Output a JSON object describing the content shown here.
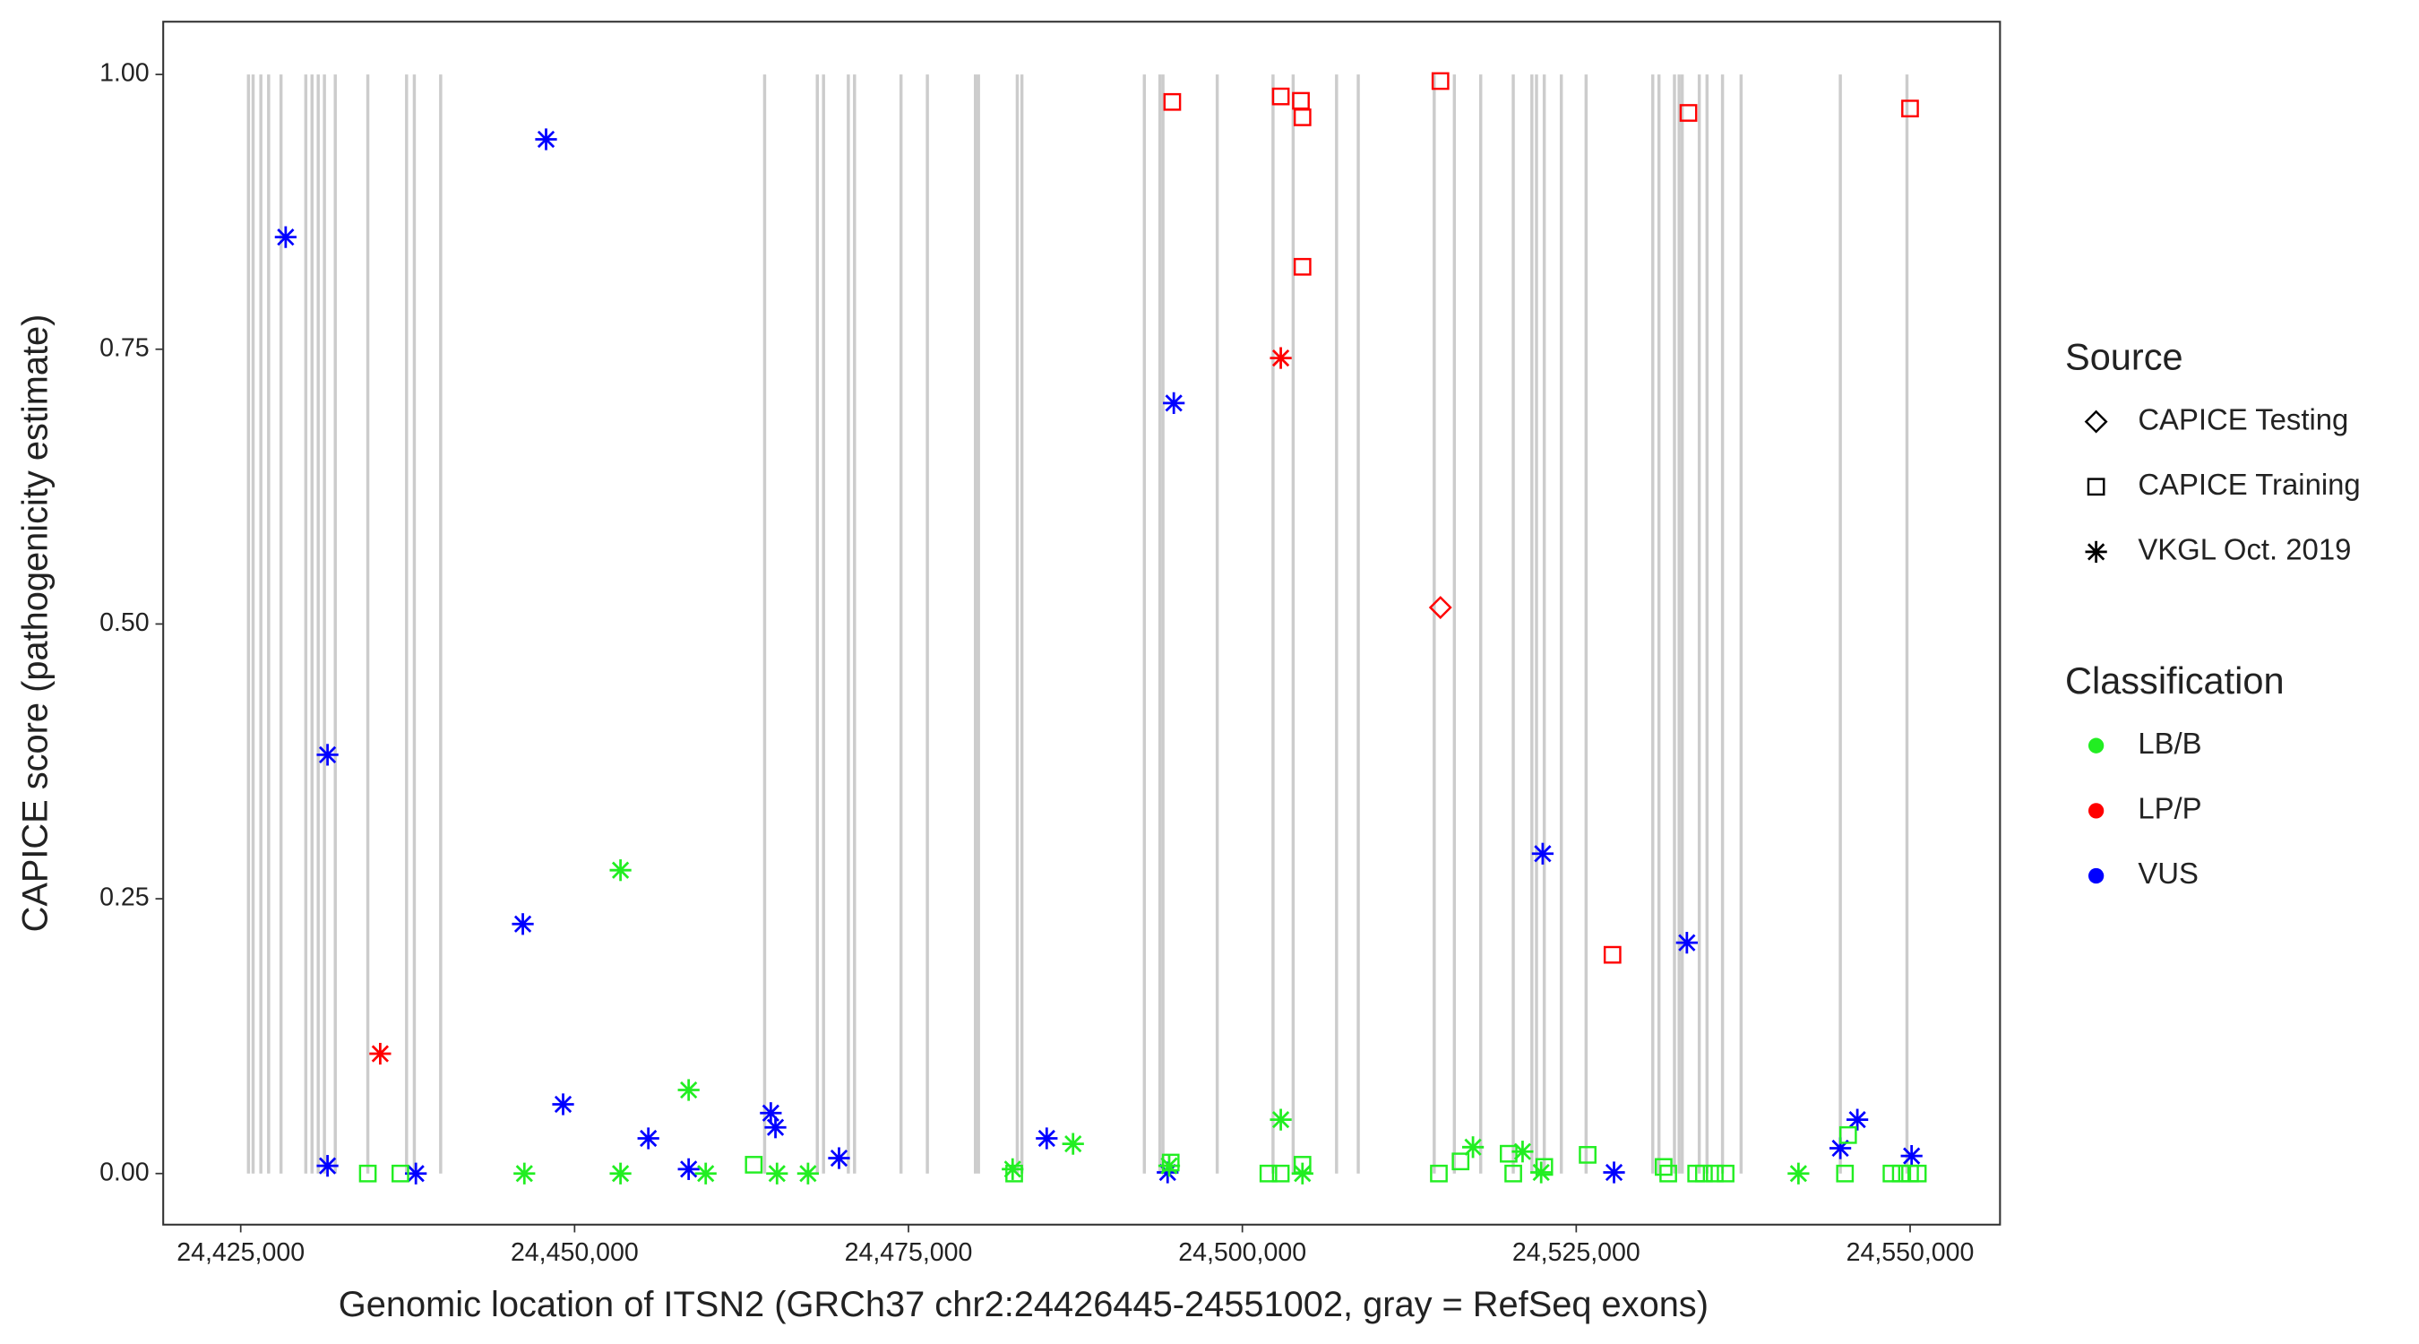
{
  "chart_data": {
    "type": "scatter",
    "x_label": "Genomic location of ITSN2 (GRCh37 chr2:24426445-24551002, gray = RefSeq exons)",
    "y_label": "CAPICE score (pathogenicity estimate)",
    "xlim": [
      24419197,
      24556732
    ],
    "ylim": [
      -0.0465,
      1.048
    ],
    "xticks": [
      {
        "value": 24425000,
        "label": "24,425,000"
      },
      {
        "value": 24450000,
        "label": "24,450,000"
      },
      {
        "value": 24475000,
        "label": "24,475,000"
      },
      {
        "value": 24500000,
        "label": "24,500,000"
      },
      {
        "value": 24525000,
        "label": "24,525,000"
      },
      {
        "value": 24550000,
        "label": "24,550,000"
      }
    ],
    "yticks": [
      {
        "value": 0,
        "label": "0.00"
      },
      {
        "value": 0.25,
        "label": "0.25"
      },
      {
        "value": 0.5,
        "label": "0.50"
      },
      {
        "value": 0.75,
        "label": "0.75"
      },
      {
        "value": 1,
        "label": "1.00"
      }
    ],
    "exon_color": "#cccccc",
    "exons": [
      24425580,
      24425928,
      24426508,
      24427089,
      24428017,
      24429874,
      24430339,
      24430803,
      24431267,
      24432080,
      24434517,
      24437418,
      24437999,
      24439972,
      24464228,
      24468174,
      24468639,
      24470496,
      24470960,
      24474442,
      24476415,
      24480012,
      24480245,
      24483146,
      24483494,
      24492663,
      24493824,
      24494056,
      24498118,
      24502296,
      24503805,
      24507054,
      24508679,
      24514366,
      24515875,
      24517848,
      24520285,
      24521678,
      24522026,
      24522606,
      24523883,
      24525740,
      24530731,
      24531195,
      24532356,
      24532704,
      24532936,
      24534212,
      24534793,
      24535953,
      24537346,
      24544774,
      24549765
    ],
    "shape_legend": {
      "title": "Source",
      "entries": [
        {
          "label": "CAPICE Testing",
          "shape": "diamond"
        },
        {
          "label": "CAPICE Training",
          "shape": "square"
        },
        {
          "label": "VKGL Oct. 2019",
          "shape": "asterisk"
        }
      ]
    },
    "color_legend": {
      "title": "Classification",
      "entries": [
        {
          "label": "LB/B",
          "color": "#22ee22"
        },
        {
          "label": "LP/P",
          "color": "#ff0000"
        },
        {
          "label": "VUS",
          "color": "#0000ff"
        }
      ]
    },
    "series": [
      {
        "shape": "asterisk",
        "color": "#0000ff",
        "x": [
          24428366,
          24447864,
          24431500,
          24431500,
          24438115,
          24446123,
          24449140,
          24455523,
          24458541,
          24464692,
          24465040,
          24469799,
          24485351,
          24494868,
          24494404,
          24522490,
          24527830,
          24533285,
          24544774,
          24546050,
          24550112
        ],
        "values": [
          0.852,
          0.941,
          0.381,
          0.007,
          0,
          0.227,
          0.063,
          0.032,
          0.004,
          0.055,
          0.042,
          0.014,
          0.032,
          0.701,
          0.001,
          0.291,
          0.001,
          0.21,
          0.023,
          0.049,
          0.016
        ]
      },
      {
        "shape": "asterisk",
        "color": "#ff0000",
        "x": [
          24435445,
          24502877
        ],
        "values": [
          0.109,
          0.742
        ]
      },
      {
        "shape": "asterisk",
        "color": "#22ee22",
        "x": [
          24453437,
          24446239,
          24453437,
          24458541,
          24459818,
          24465157,
          24467478,
          24482798,
          24487324,
          24494520,
          24502877,
          24504502,
          24517268,
          24520982,
          24522374,
          24541640
        ],
        "values": [
          0.276,
          0,
          0,
          0.076,
          0,
          0,
          0,
          0.004,
          0.027,
          0.007,
          0.049,
          0,
          0.024,
          0.02,
          0.001,
          0
        ]
      },
      {
        "shape": "square",
        "color": "#22ee22",
        "x": [
          24434517,
          24436954,
          24463416,
          24482914,
          24494636,
          24501948,
          24502877,
          24504502,
          24514715,
          24516340,
          24519938,
          24520285,
          24522606,
          24525856,
          24531543,
          24531891,
          24533980,
          24534561,
          24535373,
          24536185,
          24545122,
          24545354,
          24548603,
          24549300,
          24549996,
          24550576
        ],
        "values": [
          0,
          0,
          0.008,
          0,
          0.01,
          0,
          0,
          0.008,
          0,
          0.011,
          0.018,
          0,
          0.006,
          0.017,
          0.006,
          0,
          0,
          0,
          0,
          0,
          0,
          0.035,
          0,
          0,
          0,
          0
        ]
      },
      {
        "shape": "square",
        "color": "#ff0000",
        "x": [
          24494752,
          24502877,
          24504386,
          24504502,
          24504502,
          24514831,
          24533401,
          24549996,
          24527714
        ],
        "values": [
          0.975,
          0.98,
          0.976,
          0.961,
          0.825,
          0.994,
          0.965,
          0.969,
          0.199
        ]
      },
      {
        "shape": "diamond",
        "color": "#ff0000",
        "x": [
          24514831
        ],
        "values": [
          0.515
        ]
      }
    ]
  }
}
